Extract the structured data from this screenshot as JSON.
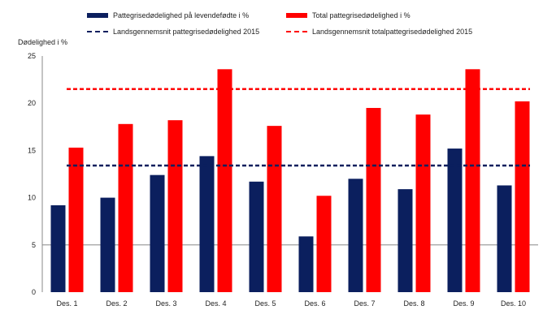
{
  "chart_data": {
    "type": "bar",
    "ylabel": "Dødelighed i %",
    "ylim": [
      0,
      25
    ],
    "yticks": [
      0,
      5,
      10,
      15,
      20,
      25
    ],
    "grid": false,
    "legend_position": "top",
    "categories": [
      "Des. 1",
      "Des. 2",
      "Des. 3",
      "Des. 4",
      "Des. 5",
      "Des. 6",
      "Des. 7",
      "Des. 8",
      "Des. 9",
      "Des. 10"
    ],
    "series": [
      {
        "name": "Pattegrisedødelighed på levendefødte i %",
        "color": "#0b1f5e",
        "values": [
          9.2,
          10.0,
          12.4,
          14.4,
          11.7,
          5.9,
          12.0,
          10.9,
          15.2,
          11.3
        ]
      },
      {
        "name": "Total pattegrisedødelighed i %",
        "color": "#ff0000",
        "values": [
          15.3,
          17.8,
          18.2,
          23.6,
          17.6,
          10.2,
          19.5,
          18.8,
          23.6,
          20.2
        ]
      }
    ],
    "reference_lines": [
      {
        "name": "Landsgennemsnit pattegrisedødelighed 2015",
        "value": 13.4,
        "color": "#0b1f5e",
        "style": "dashed"
      },
      {
        "name": "Landsgennemsnit totalpattegrisedødelighed 2015",
        "value": 21.5,
        "color": "#ff0000",
        "style": "dashed"
      }
    ]
  }
}
